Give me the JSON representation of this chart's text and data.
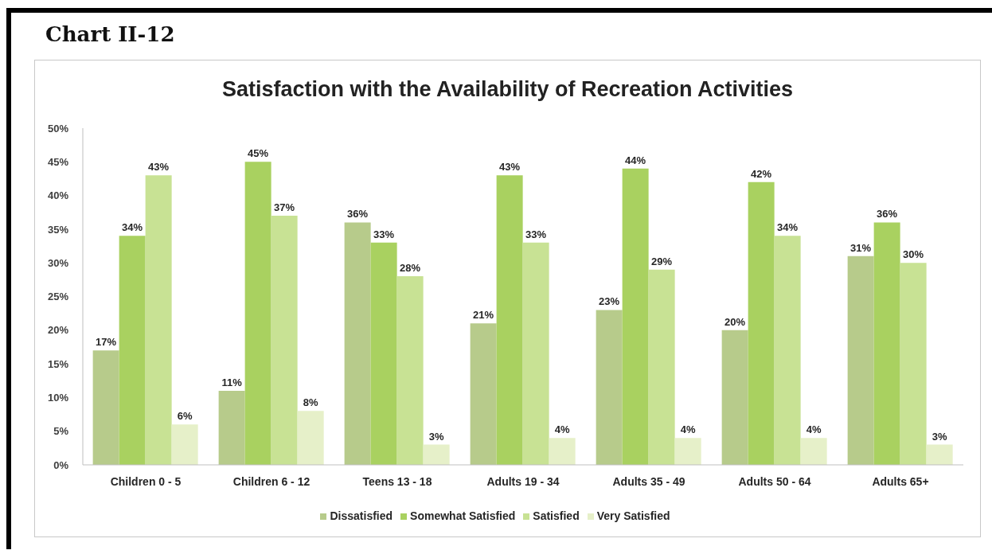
{
  "chart_data": {
    "type": "bar",
    "title": "Satisfaction with the Availability of Recreation Activities",
    "annotations": [
      "Chart II-12"
    ],
    "categories": [
      "Children 0 - 5",
      "Children 6 - 12",
      "Teens 13 - 18",
      "Adults 19 - 34",
      "Adults 35 - 49",
      "Adults 50 - 64",
      "Adults 65+"
    ],
    "series": [
      {
        "name": "Dissatisfied",
        "color": "#b7cb8b",
        "values": [
          17,
          11,
          36,
          21,
          23,
          20,
          31
        ],
        "value_labels": [
          "17%",
          "11%",
          "36%",
          "21%",
          "23%",
          "20%",
          "31%"
        ]
      },
      {
        "name": "Somewhat Satisfied",
        "color": "#a9d160",
        "values": [
          34,
          45,
          33,
          43,
          44,
          42,
          36
        ],
        "value_labels": [
          "34%",
          "45%",
          "33%",
          "43%",
          "44%",
          "42%",
          "36%"
        ]
      },
      {
        "name": "Satisfied",
        "color": "#c8e294",
        "values": [
          43,
          37,
          28,
          33,
          29,
          34,
          30
        ],
        "value_labels": [
          "43%",
          "37%",
          "28%",
          "33%",
          "29%",
          "34%",
          "30%"
        ]
      },
      {
        "name": "Very Satisfied",
        "color": "#e6f0c9",
        "values": [
          6,
          8,
          3,
          4,
          4,
          4,
          3
        ],
        "value_labels": [
          "6%",
          "8%",
          "3%",
          "4%",
          "4%",
          "4%",
          "3%"
        ]
      }
    ],
    "ylim": [
      0,
      50
    ],
    "yticks": [
      {
        "value": 0,
        "label": "0%"
      },
      {
        "value": 5,
        "label": "5%"
      },
      {
        "value": 10,
        "label": "10%"
      },
      {
        "value": 15,
        "label": "15%"
      },
      {
        "value": 20,
        "label": "20%"
      },
      {
        "value": 25,
        "label": "25%"
      },
      {
        "value": 30,
        "label": "30%"
      },
      {
        "value": 35,
        "label": "35%"
      },
      {
        "value": 40,
        "label": "40%"
      },
      {
        "value": 45,
        "label": "45%"
      },
      {
        "value": 50,
        "label": "50%"
      }
    ],
    "legend": "bottom"
  }
}
